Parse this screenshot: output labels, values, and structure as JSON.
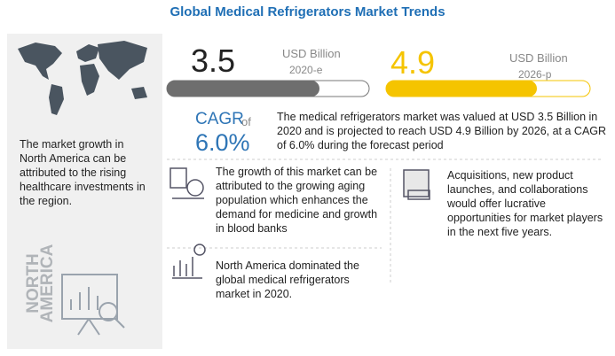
{
  "title": "Global Medical Refrigerators Market Trends",
  "region": {
    "text": "The market growth in North America can be attributed to the rising healthcare investments in the region.",
    "label": "NORTH AMERICA"
  },
  "market": [
    {
      "value": "3.5",
      "unit": "USD Billion",
      "year": "2020-e"
    },
    {
      "value": "4.9",
      "unit": "USD Billion",
      "year": "2026-p"
    }
  ],
  "cagr": {
    "label": "CAGR",
    "of": "of",
    "value": "6.0%",
    "text": "The medical refrigerators market was valued at USD 3.5 Billion in 2020 and is projected to reach USD 4.9 Billion by 2026, at a CAGR of 6.0% during the forecast period"
  },
  "insights": [
    "The growth of this market can be attributed to the growing aging population which enhances the demand for medicine and growth in blood banks",
    "Acquisitions, new product launches, and collaborations would offer lucrative opportunities for market players in the next five years.",
    "North America dominated the global medical refrigerators market in 2020."
  ]
}
